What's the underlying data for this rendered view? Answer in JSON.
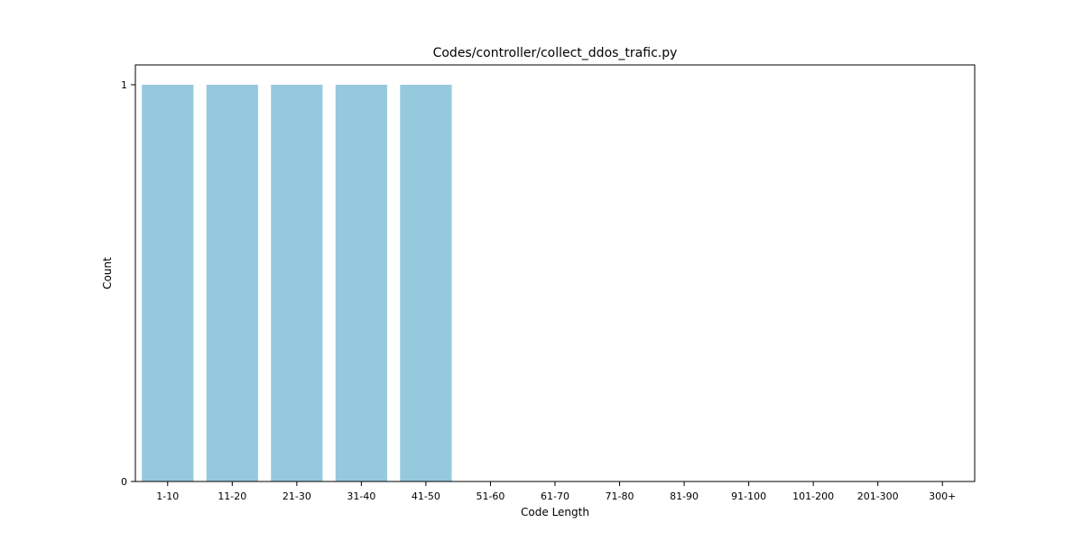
{
  "chart_data": {
    "type": "bar",
    "title": "Codes/controller/collect_ddos_trafic.py",
    "xlabel": "Code Length",
    "ylabel": "Count",
    "categories": [
      "1-10",
      "11-20",
      "21-30",
      "31-40",
      "41-50",
      "51-60",
      "61-70",
      "71-80",
      "81-90",
      "91-100",
      "101-200",
      "201-300",
      "300+"
    ],
    "values": [
      1,
      1,
      1,
      1,
      1,
      0,
      0,
      0,
      0,
      0,
      0,
      0,
      0
    ],
    "ylim": [
      0,
      1.05
    ],
    "yticks": [
      0,
      1
    ],
    "ytick_labels": [
      "0",
      "1"
    ],
    "bar_color": "#96c9de",
    "grid": false,
    "legend": null
  }
}
